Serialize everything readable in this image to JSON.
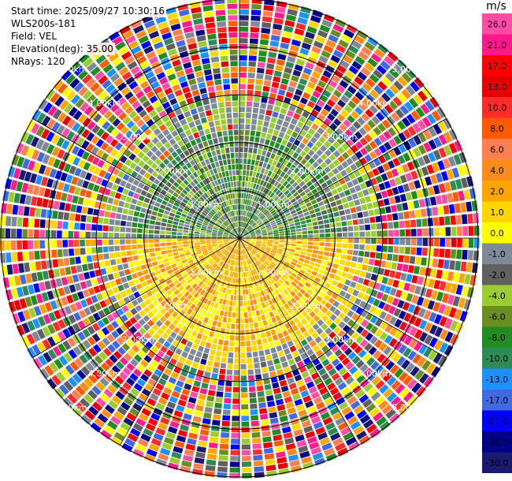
{
  "header": {
    "start_time": "Start time: 2025/09/27 10:30:16",
    "instrument": "WLS200s-181",
    "field": "Field: VEL",
    "elevation": "Elevation(deg): 35.00",
    "nrays": "NRays: 120"
  },
  "chart_data": {
    "type": "heatmap",
    "projection": "polar-ppi",
    "field": "VEL",
    "units": "m/s",
    "elevation_deg": 35.0,
    "n_rays": 120,
    "max_range_km": 5.0,
    "range_rings_km": [
      1.0,
      2.0,
      3.0,
      4.0,
      5.0
    ],
    "ring_labels": [
      "1.00km",
      "2.00km",
      "3.00km",
      "4.00km",
      "5.00km"
    ],
    "spokes_deg": [
      0,
      30,
      60,
      90,
      120,
      150,
      180,
      210,
      240,
      270,
      300,
      330
    ],
    "colorbar": {
      "title": "m/s",
      "tick_labels": [
        "26.0",
        "21.0",
        "17.0",
        "13.0",
        "10.0",
        "8.0",
        "6.0",
        "4.0",
        "2.0",
        "1.0",
        "0.0",
        "-1.0",
        "-2.0",
        "-4.0",
        "-6.0",
        "-8.0",
        "-10.0",
        "-13.0",
        "-17.0",
        "-21.0",
        "-26.0",
        "-30.0"
      ],
      "colors_top_to_bottom": [
        "#ff4ca6",
        "#ff1a8c",
        "#ff0000",
        "#e60000",
        "#ff2b2b",
        "#ff5a00",
        "#ff7f50",
        "#ff8c1a",
        "#ffa500",
        "#ffd700",
        "#ffff00",
        "#7f8a99",
        "#606060",
        "#9acd32",
        "#6b8e23",
        "#228b22",
        "#2e8b57",
        "#1e90ff",
        "#4169e1",
        "#0000ff",
        "#00008b",
        "#191970"
      ]
    },
    "velocity_pattern": {
      "inner_north": "approaching (green, -1 to -8 m/s)",
      "inner_south": "receding (yellow/orange, 1 to 6 m/s)",
      "outer": "noise (all colors)"
    }
  },
  "colors": {
    "ring": "#000000",
    "label": "#ffffff"
  }
}
